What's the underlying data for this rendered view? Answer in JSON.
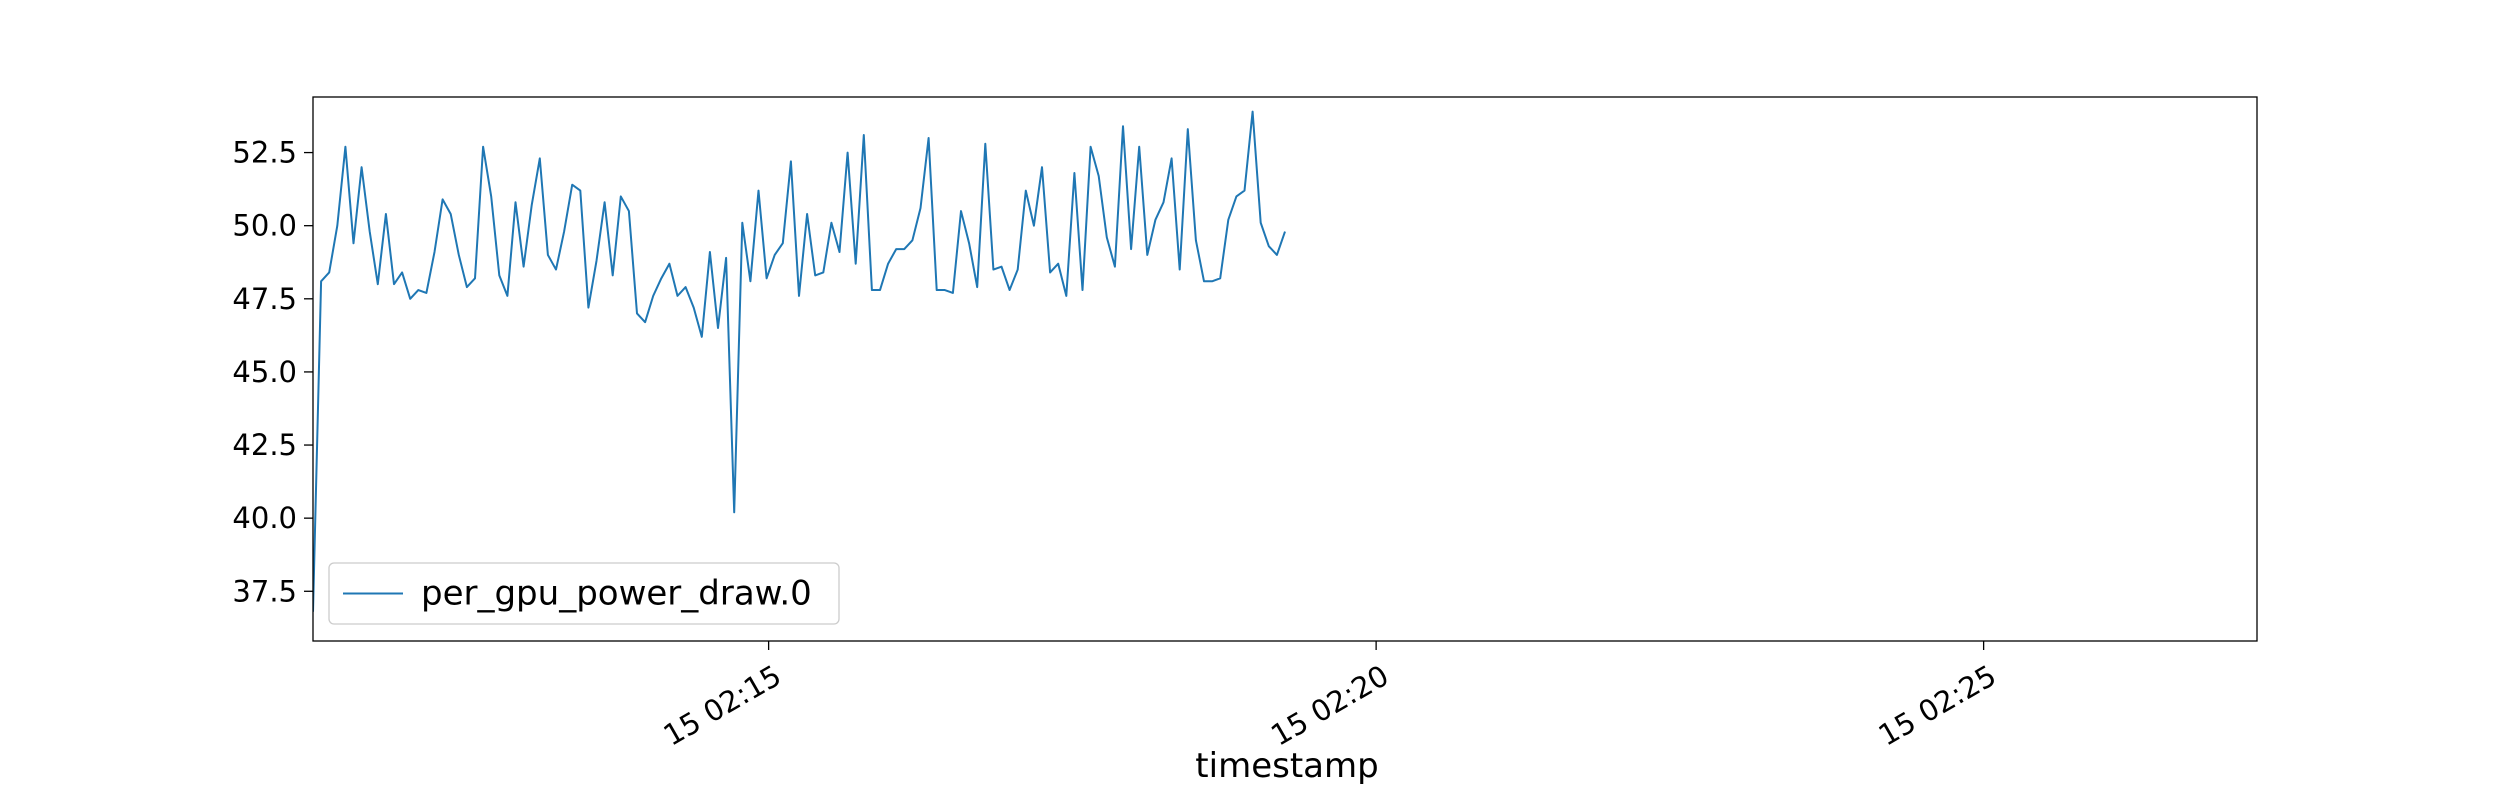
{
  "chart_data": {
    "type": "line",
    "xlabel": "timestamp",
    "ylabel": "",
    "x_start": "15 02:11:15",
    "x_step_seconds": 4,
    "xlim": [
      "15 02:11:15",
      "15 02:27:15"
    ],
    "ylim": [
      35.8,
      54.4
    ],
    "yticks": [
      37.5,
      40.0,
      42.5,
      45.0,
      47.5,
      50.0,
      52.5
    ],
    "xticks": [
      {
        "label": "15 02:15",
        "value": "15 02:15:00"
      },
      {
        "label": "15 02:20",
        "value": "15 02:20:00"
      },
      {
        "label": "15 02:25",
        "value": "15 02:25:00"
      }
    ],
    "grid": false,
    "legend": "lower-left",
    "series": [
      {
        "name": "per_gpu_power_draw.0",
        "color": "#1f77b4",
        "values": [
          36.8,
          48.1,
          48.4,
          50.0,
          52.7,
          49.4,
          52.0,
          49.8,
          48.0,
          50.4,
          48.0,
          48.4,
          47.5,
          47.8,
          47.7,
          49.1,
          50.9,
          50.4,
          49.0,
          47.9,
          48.2,
          52.7,
          51.0,
          48.3,
          47.6,
          50.8,
          48.6,
          50.7,
          52.3,
          49.0,
          48.5,
          49.8,
          51.4,
          51.2,
          47.2,
          48.8,
          50.8,
          48.3,
          51.0,
          50.5,
          47.0,
          46.7,
          47.6,
          48.2,
          48.7,
          47.6,
          47.9,
          47.2,
          46.2,
          49.1,
          46.5,
          48.9,
          40.2,
          50.1,
          48.1,
          51.2,
          48.2,
          49.0,
          49.4,
          52.2,
          47.6,
          50.4,
          48.3,
          48.4,
          50.1,
          49.1,
          52.5,
          48.7,
          53.1,
          47.8,
          47.8,
          48.7,
          49.2,
          49.2,
          49.5,
          50.6,
          53.0,
          47.8,
          47.8,
          47.7,
          50.5,
          49.4,
          47.9,
          52.8,
          48.5,
          48.6,
          47.8,
          48.5,
          51.2,
          50.0,
          52.0,
          48.4,
          48.7,
          47.6,
          51.8,
          47.8,
          52.7,
          51.7,
          49.6,
          48.6,
          53.4,
          49.2,
          52.7,
          49.0,
          50.2,
          50.8,
          52.3,
          48.5,
          53.3,
          49.5,
          48.1,
          48.1,
          48.2,
          50.2,
          51.0,
          51.2,
          53.9,
          50.1,
          49.3,
          49.0,
          49.8
        ]
      }
    ]
  }
}
